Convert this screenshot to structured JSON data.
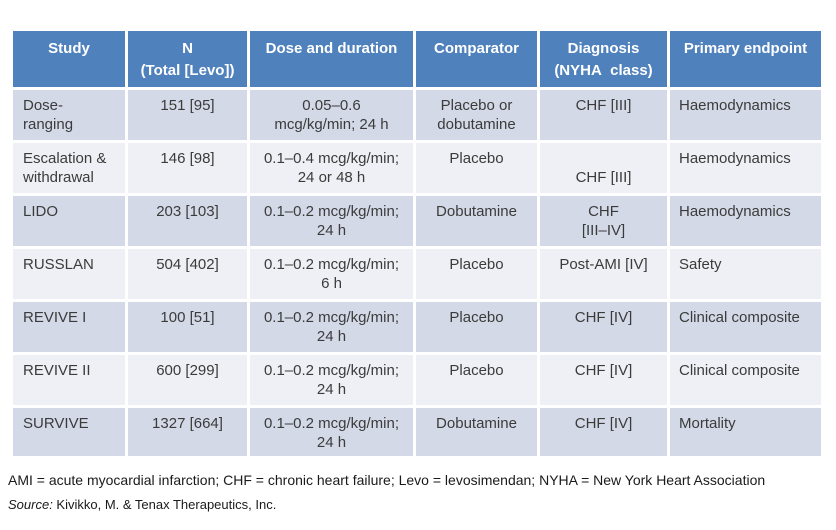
{
  "colors": {
    "header_bg": "#4f81bd",
    "band_odd": "#d3d9e7",
    "band_even": "#eef0f5",
    "header_text": "#ffffff",
    "body_text": "#3b3b3b"
  },
  "table": {
    "column_keys": [
      "study",
      "n",
      "dose",
      "comparator",
      "diagnosis",
      "endpoint"
    ],
    "columns": [
      {
        "key": "study",
        "label": "Study"
      },
      {
        "key": "n",
        "label": "N\n(Total [Levo])"
      },
      {
        "key": "dose",
        "label": "Dose and duration"
      },
      {
        "key": "comparator",
        "label": "Comparator"
      },
      {
        "key": "diagnosis",
        "label": "Diagnosis\n(NYHA  class)"
      },
      {
        "key": "endpoint",
        "label": "Primary endpoint"
      }
    ],
    "rows": [
      {
        "study": "Dose-\nranging",
        "n": "151 [95]",
        "dose": "0.05–0.6\nmcg/kg/min; 24 h",
        "comparator": "Placebo or\ndobutamine",
        "diagnosis": "CHF [III]",
        "endpoint": "Haemodynamics"
      },
      {
        "study": "Escalation &\nwithdrawal",
        "n": "146 [98]",
        "dose": "0.1–0.4 mcg/kg/min;\n24 or 48 h",
        "comparator": "Placebo",
        "diagnosis": "\nCHF [III]",
        "endpoint": "Haemodynamics"
      },
      {
        "study": "LIDO",
        "n": "203 [103]",
        "dose": "0.1–0.2 mcg/kg/min;\n24 h",
        "comparator": "Dobutamine",
        "diagnosis": "CHF\n[III–IV]",
        "endpoint": "Haemodynamics"
      },
      {
        "study": "RUSSLAN",
        "n": "504 [402]",
        "dose": "0.1–0.2 mcg/kg/min;\n6 h",
        "comparator": "Placebo",
        "diagnosis": "Post-AMI [IV]",
        "endpoint": "Safety"
      },
      {
        "study": "REVIVE I",
        "n": "100 [51]",
        "dose": "0.1–0.2 mcg/kg/min;\n24 h",
        "comparator": "Placebo",
        "diagnosis": "CHF [IV]",
        "endpoint": "Clinical composite"
      },
      {
        "study": "REVIVE II",
        "n": "600 [299]",
        "dose": "0.1–0.2 mcg/kg/min;\n24 h",
        "comparator": "Placebo",
        "diagnosis": "CHF [IV]",
        "endpoint": "Clinical composite"
      },
      {
        "study": "SURVIVE",
        "n": "1327 [664]",
        "dose": "0.1–0.2 mcg/kg/min;\n24 h",
        "comparator": "Dobutamine",
        "diagnosis": "CHF [IV]",
        "endpoint": "Mortality"
      }
    ]
  },
  "footnote": "AMI = acute myocardial infarction; CHF = chronic heart failure; Levo = levosimendan; NYHA = New York Heart Association",
  "source": {
    "label": "Source:",
    "text": " Kivikko, M. & Tenax Therapeutics, Inc."
  }
}
